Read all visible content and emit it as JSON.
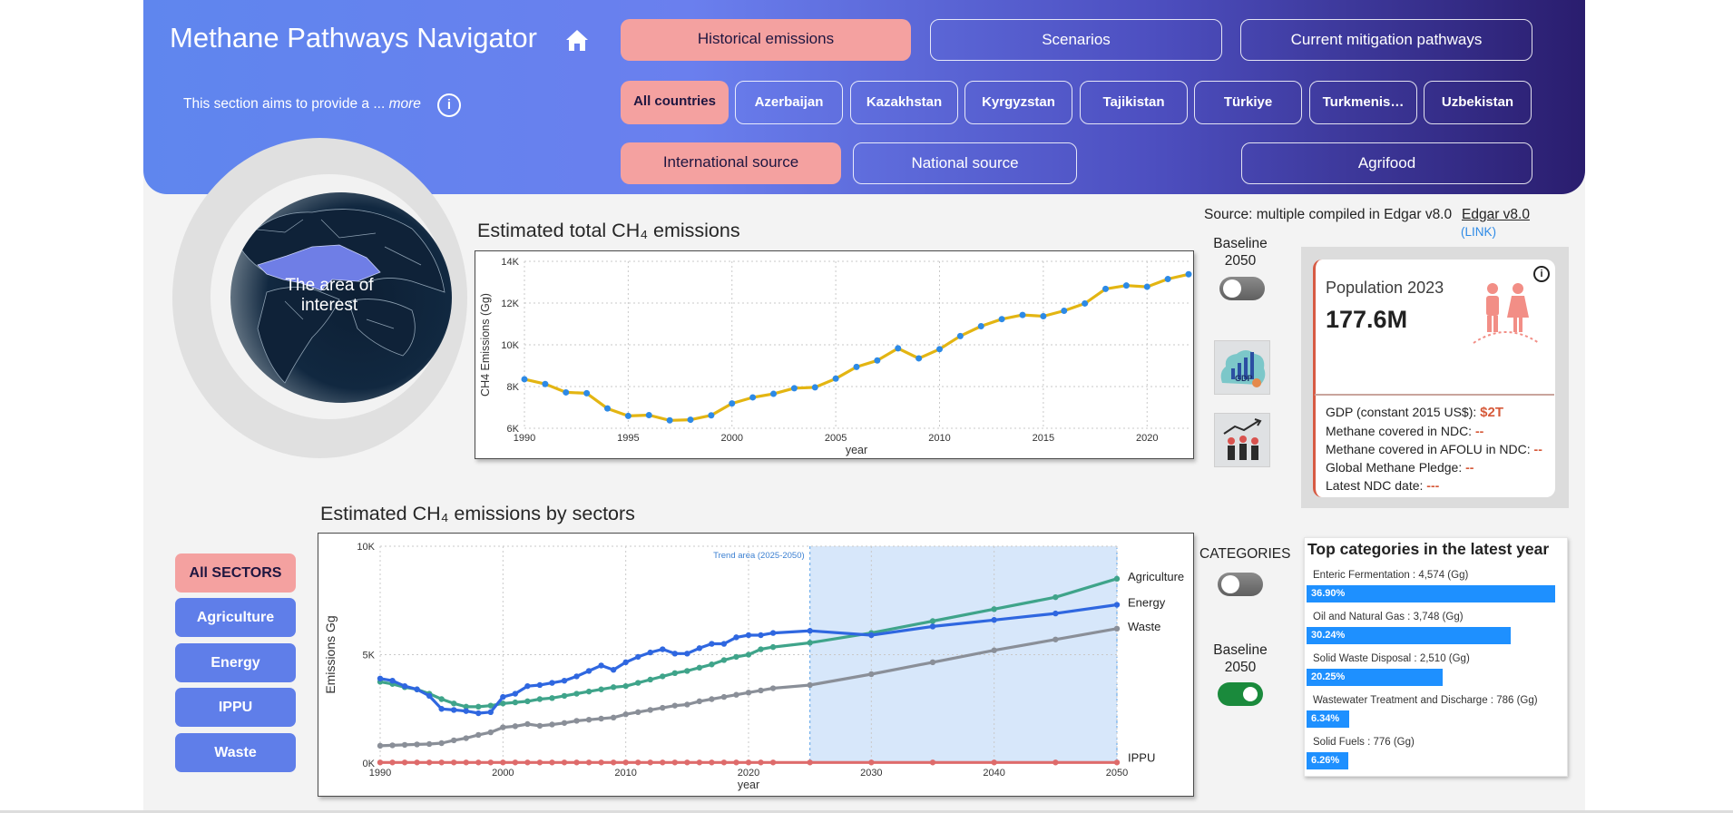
{
  "app": {
    "title": "Methane Pathways Navigator",
    "intro_text": "This section aims to provide a ...",
    "intro_more": "more",
    "info_glyph": "i"
  },
  "colors": {
    "accent_pink": "#f4a1a0",
    "band_start": "#5f86ee",
    "band_end": "#2a1d6e",
    "line_gold": "#e3b512",
    "point_blue": "#2d8ae6"
  },
  "nav": {
    "views": [
      {
        "label": "Historical emissions",
        "active": true
      },
      {
        "label": "Scenarios",
        "active": false
      },
      {
        "label": "Current mitigation pathways",
        "active": false
      }
    ],
    "countries": [
      {
        "label": "All countries",
        "active": true
      },
      {
        "label": "Azerbaijan",
        "active": false
      },
      {
        "label": "Kazakhstan",
        "active": false
      },
      {
        "label": "Kyrgyzstan",
        "active": false
      },
      {
        "label": "Tajikistan",
        "active": false
      },
      {
        "label": "Türkiye",
        "active": false
      },
      {
        "label": "Turkmenis…",
        "active": false
      },
      {
        "label": "Uzbekistan",
        "active": false
      }
    ],
    "sources": [
      {
        "label": "International source",
        "active": true
      },
      {
        "label": "National source",
        "active": false
      }
    ],
    "agrifood_label": "Agrifood"
  },
  "globe": {
    "label": "The area of interest"
  },
  "source_info": {
    "text": "Source: multiple compiled in Edgar v8.0",
    "link_text": "Edgar v8.0",
    "link_sub": "(LINK)"
  },
  "total_chart": {
    "title": "Estimated total CH₄ emissions",
    "toggle_label": "Baseline 2050",
    "toggle_on": false,
    "icons": [
      "gdp-icon",
      "population-growth-icon"
    ],
    "gdp_icon_text": "GDP"
  },
  "population_card": {
    "title": "Population 2023",
    "value": "177.6M",
    "info_glyph": "i",
    "rows": [
      {
        "label": "GDP (constant 2015 US$):",
        "value": "$2T"
      },
      {
        "label": "Methane covered in NDC:",
        "value": "--"
      },
      {
        "label": "Methane covered in AFOLU in NDC:",
        "value": "--"
      },
      {
        "label": "Global Methane Pledge:",
        "value": "--"
      },
      {
        "label": "Latest NDC date:",
        "value": "---"
      }
    ]
  },
  "sector_chart": {
    "title": "Estimated CH₄ emissions by sectors",
    "categories_label": "CATEGORIES",
    "categories_toggle_on": false,
    "baseline_label": "Baseline 2050",
    "baseline_toggle_on": true
  },
  "sector_buttons": [
    {
      "label": "All SECTORS",
      "active": true
    },
    {
      "label": "Agriculture",
      "active": false
    },
    {
      "label": "Energy",
      "active": false
    },
    {
      "label": "IPPU",
      "active": false
    },
    {
      "label": "Waste",
      "active": false
    }
  ],
  "top_categories": {
    "title": "Top categories in the latest year",
    "items": [
      {
        "label": "Enteric Fermentation : 4,574 (Gg)",
        "pct_label": "36.90%",
        "share": 36.9
      },
      {
        "label": "Oil and Natural Gas : 3,748 (Gg)",
        "pct_label": "30.24%",
        "share": 30.24
      },
      {
        "label": "Solid Waste Disposal : 2,510 (Gg)",
        "pct_label": "20.25%",
        "share": 20.25
      },
      {
        "label": "Wastewater Treatment and Discharge : 786 (Gg)",
        "pct_label": "6.34%",
        "share": 6.34
      },
      {
        "label": "Solid Fuels : 776 (Gg)",
        "pct_label": "6.26%",
        "share": 6.26
      }
    ]
  },
  "chart_data": [
    {
      "type": "line",
      "title": "Estimated total CH₄ emissions",
      "xlabel": "year",
      "ylabel": "CH4 Emissions (Gg)",
      "xlim": [
        1990,
        2022
      ],
      "ylim": [
        6000,
        14000
      ],
      "x_ticks": [
        1990,
        1995,
        2000,
        2005,
        2010,
        2015,
        2020
      ],
      "x_tick_labels": [
        "1990",
        "1995",
        "2000",
        "2005",
        "2010",
        "2015",
        "2020"
      ],
      "y_ticks": [
        6000,
        8000,
        10000,
        12000,
        14000
      ],
      "y_tick_labels": [
        "6K",
        "8K",
        "10K",
        "12K",
        "14K"
      ],
      "grid": true,
      "series": [
        {
          "color": "#e3b512",
          "marker_color": "#2d8ae6",
          "x": [
            1990,
            1991,
            1992,
            1993,
            1994,
            1995,
            1996,
            1997,
            1998,
            1999,
            2000,
            2001,
            2002,
            2003,
            2004,
            2005,
            2006,
            2007,
            2008,
            2009,
            2010,
            2011,
            2012,
            2013,
            2014,
            2015,
            2016,
            2017,
            2018,
            2019,
            2020,
            2021,
            2022
          ],
          "y": [
            8350,
            8120,
            7720,
            7680,
            6950,
            6590,
            6630,
            6380,
            6410,
            6620,
            7190,
            7480,
            7650,
            7920,
            7960,
            8380,
            8940,
            9250,
            9830,
            9350,
            9790,
            10420,
            10890,
            11230,
            11430,
            11370,
            11630,
            11980,
            12680,
            12840,
            12780,
            13150,
            13380
          ]
        }
      ]
    },
    {
      "type": "line",
      "title": "Estimated CH₄ emissions by sectors",
      "xlabel": "year",
      "ylabel": "Emissions Gg",
      "xlim": [
        1990,
        2050
      ],
      "ylim": [
        0,
        10000
      ],
      "x_ticks": [
        1990,
        2000,
        2010,
        2020,
        2030,
        2040,
        2050
      ],
      "x_tick_labels": [
        "1990",
        "2000",
        "2010",
        "2020",
        "2030",
        "2040",
        "2050"
      ],
      "y_ticks": [
        0,
        5000,
        10000
      ],
      "y_tick_labels": [
        "0K",
        "5K",
        "10K"
      ],
      "grid": true,
      "trend_area": {
        "label": "Trend area (2025-2050)",
        "x": [
          2025,
          2050
        ]
      },
      "series": [
        {
          "name": "Agriculture",
          "color": "#3fa48a",
          "x": [
            1990,
            1991,
            1992,
            1993,
            1994,
            1995,
            1996,
            1997,
            1998,
            1999,
            2000,
            2001,
            2002,
            2003,
            2004,
            2005,
            2006,
            2007,
            2008,
            2009,
            2010,
            2011,
            2012,
            2013,
            2014,
            2015,
            2016,
            2017,
            2018,
            2019,
            2020,
            2021,
            2022,
            2025,
            2030,
            2035,
            2040,
            2045,
            2050
          ],
          "y": [
            3750,
            3650,
            3500,
            3400,
            3200,
            2950,
            2750,
            2600,
            2600,
            2650,
            2750,
            2800,
            2850,
            2950,
            3000,
            3100,
            3200,
            3300,
            3400,
            3500,
            3550,
            3700,
            3850,
            4000,
            4150,
            4250,
            4400,
            4550,
            4750,
            4900,
            5000,
            5250,
            5350,
            5550,
            6000,
            6550,
            7100,
            7650,
            8500
          ]
        },
        {
          "name": "Energy",
          "color": "#2f67e0",
          "x": [
            1990,
            1991,
            1992,
            1993,
            1994,
            1995,
            1996,
            1997,
            1998,
            1999,
            2000,
            2001,
            2002,
            2003,
            2004,
            2005,
            2006,
            2007,
            2008,
            2009,
            2010,
            2011,
            2012,
            2013,
            2014,
            2015,
            2016,
            2017,
            2018,
            2019,
            2020,
            2021,
            2022,
            2025,
            2030,
            2035,
            2040,
            2045,
            2050
          ],
          "y": [
            3900,
            3800,
            3550,
            3400,
            3100,
            2500,
            2450,
            2400,
            2300,
            2350,
            3050,
            3200,
            3550,
            3600,
            3700,
            3800,
            4000,
            4250,
            4500,
            4300,
            4650,
            4900,
            5100,
            5250,
            5050,
            5050,
            5300,
            5500,
            5500,
            5800,
            5900,
            5900,
            6000,
            6100,
            5900,
            6300,
            6600,
            6900,
            7300
          ]
        },
        {
          "name": "Waste",
          "color": "#8a8f98",
          "x": [
            1990,
            1991,
            1992,
            1993,
            1994,
            1995,
            1996,
            1997,
            1998,
            1999,
            2000,
            2001,
            2002,
            2003,
            2004,
            2005,
            2006,
            2007,
            2008,
            2009,
            2010,
            2011,
            2012,
            2013,
            2014,
            2015,
            2016,
            2017,
            2018,
            2019,
            2020,
            2021,
            2022,
            2025,
            2030,
            2035,
            2040,
            2045,
            2050
          ],
          "y": [
            800,
            820,
            840,
            860,
            880,
            920,
            1050,
            1150,
            1300,
            1420,
            1650,
            1700,
            1800,
            1720,
            1780,
            1850,
            1950,
            2000,
            2050,
            2100,
            2250,
            2350,
            2450,
            2550,
            2650,
            2700,
            2850,
            2950,
            3050,
            3150,
            3250,
            3350,
            3450,
            3600,
            4100,
            4650,
            5200,
            5700,
            6200
          ]
        },
        {
          "name": "IPPU",
          "color": "#de6b6b",
          "x": [
            1990,
            1991,
            1992,
            1993,
            1994,
            1995,
            1996,
            1997,
            1998,
            1999,
            2000,
            2001,
            2002,
            2003,
            2004,
            2005,
            2006,
            2007,
            2008,
            2009,
            2010,
            2011,
            2012,
            2013,
            2014,
            2015,
            2016,
            2017,
            2018,
            2019,
            2020,
            2021,
            2022,
            2025,
            2030,
            2035,
            2040,
            2045,
            2050
          ],
          "y": [
            30,
            30,
            30,
            30,
            30,
            30,
            30,
            30,
            30,
            30,
            30,
            30,
            30,
            30,
            30,
            30,
            30,
            30,
            30,
            30,
            30,
            30,
            30,
            30,
            30,
            30,
            30,
            30,
            30,
            30,
            30,
            30,
            30,
            30,
            30,
            30,
            30,
            30,
            30
          ]
        }
      ]
    }
  ]
}
